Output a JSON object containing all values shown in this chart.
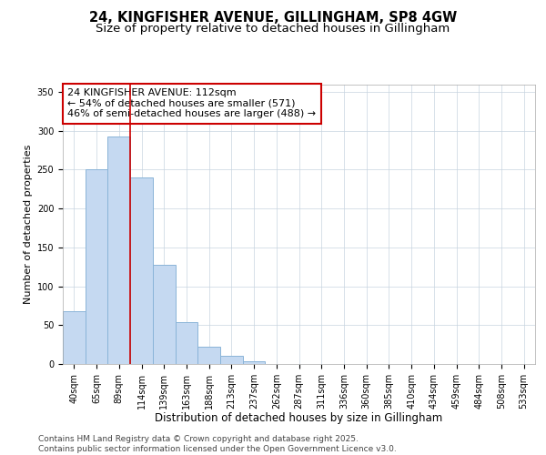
{
  "title_line1": "24, KINGFISHER AVENUE, GILLINGHAM, SP8 4GW",
  "title_line2": "Size of property relative to detached houses in Gillingham",
  "xlabel": "Distribution of detached houses by size in Gillingham",
  "ylabel": "Number of detached properties",
  "categories": [
    "40sqm",
    "65sqm",
    "89sqm",
    "114sqm",
    "139sqm",
    "163sqm",
    "188sqm",
    "213sqm",
    "237sqm",
    "262sqm",
    "287sqm",
    "311sqm",
    "336sqm",
    "360sqm",
    "385sqm",
    "410sqm",
    "434sqm",
    "459sqm",
    "484sqm",
    "508sqm",
    "533sqm"
  ],
  "values": [
    68,
    250,
    293,
    240,
    128,
    54,
    22,
    10,
    4,
    0,
    0,
    0,
    0,
    0,
    0,
    0,
    0,
    0,
    0,
    0,
    0
  ],
  "bar_color": "#c5d9f1",
  "bar_edge_color": "#8ab4d8",
  "bar_linewidth": 0.7,
  "grid_color": "#c8d4e0",
  "background_color": "#ffffff",
  "plot_bg_color": "#ffffff",
  "ylim": [
    0,
    360
  ],
  "yticks": [
    0,
    50,
    100,
    150,
    200,
    250,
    300,
    350
  ],
  "red_line_x": 2.5,
  "red_line_color": "#cc0000",
  "annotation_text": "24 KINGFISHER AVENUE: 112sqm\n← 54% of detached houses are smaller (571)\n46% of semi-detached houses are larger (488) →",
  "annotation_box_color": "#ffffff",
  "annotation_box_edge_color": "#cc0000",
  "annotation_fontsize": 8,
  "footer_text": "Contains HM Land Registry data © Crown copyright and database right 2025.\nContains public sector information licensed under the Open Government Licence v3.0.",
  "title_fontsize": 10.5,
  "subtitle_fontsize": 9.5,
  "xlabel_fontsize": 8.5,
  "ylabel_fontsize": 8,
  "tick_fontsize": 7,
  "footer_fontsize": 6.5
}
